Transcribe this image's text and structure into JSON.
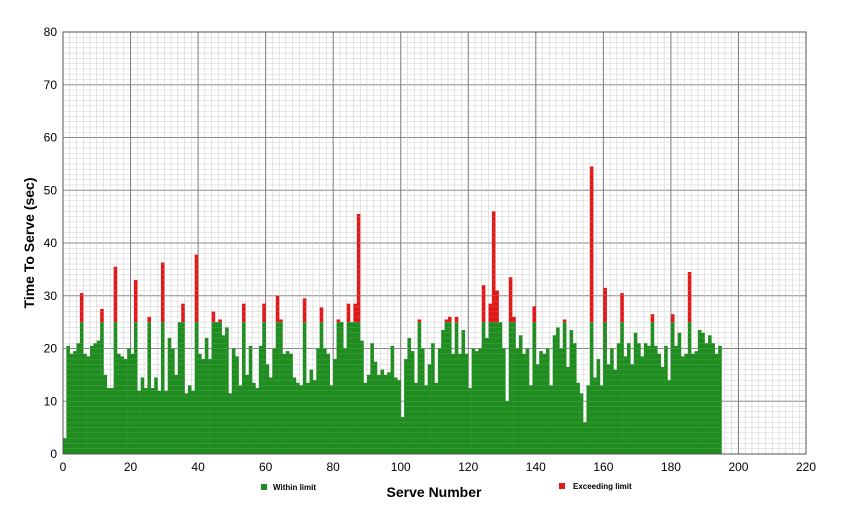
{
  "chart_data": {
    "type": "bar",
    "stacked": true,
    "title": "",
    "xlabel": "Serve Number",
    "ylabel": "Time To Serve (sec)",
    "xlim": [
      0,
      220
    ],
    "ylim": [
      0,
      80
    ],
    "xticks": [
      0,
      20,
      40,
      60,
      80,
      100,
      120,
      140,
      160,
      180,
      200,
      220
    ],
    "yticks": [
      0,
      10,
      20,
      30,
      40,
      50,
      60,
      70,
      80
    ],
    "grid": true,
    "limit_seconds": 25,
    "legend": {
      "placement": "bottom"
    },
    "colors": {
      "within": "#1e8c1e",
      "exceeding": "#e01818",
      "grid_minor": "#c8c8c8",
      "grid_major": "#7a7a7a"
    },
    "series": [
      {
        "name": "Within limit"
      },
      {
        "name": "Exceeding limit"
      }
    ],
    "x": [
      1,
      2,
      3,
      4,
      5,
      6,
      7,
      8,
      9,
      10,
      11,
      12,
      13,
      14,
      15,
      16,
      17,
      18,
      19,
      20,
      21,
      22,
      23,
      24,
      25,
      26,
      27,
      28,
      29,
      30,
      31,
      32,
      33,
      34,
      35,
      36,
      37,
      38,
      39,
      40,
      41,
      42,
      43,
      44,
      45,
      46,
      47,
      48,
      49,
      50,
      51,
      52,
      53,
      54,
      55,
      56,
      57,
      58,
      59,
      60,
      61,
      62,
      63,
      64,
      65,
      66,
      67,
      68,
      69,
      70,
      71,
      72,
      73,
      74,
      75,
      76,
      77,
      78,
      79,
      80,
      81,
      82,
      83,
      84,
      85,
      86,
      87,
      88,
      89,
      90,
      91,
      92,
      93,
      94,
      95,
      96,
      97,
      98,
      99,
      100,
      101,
      102,
      103,
      104,
      105,
      106,
      107,
      108,
      109,
      110,
      111,
      112,
      113,
      114,
      115,
      116,
      117,
      118,
      119,
      120,
      121,
      122,
      123,
      124,
      125,
      126,
      127,
      128,
      129,
      130,
      131,
      132,
      133,
      134,
      135,
      136,
      137,
      138,
      139,
      140,
      141,
      142,
      143,
      144,
      145,
      146,
      147,
      148,
      149,
      150,
      151,
      152,
      153,
      154,
      155,
      156,
      157,
      158,
      159,
      160,
      161,
      162,
      163,
      164,
      165,
      166,
      167,
      168,
      169,
      170,
      171,
      172,
      173,
      174,
      175,
      176,
      177,
      178,
      179,
      180,
      181,
      182,
      183,
      184,
      185,
      186,
      187,
      188,
      189,
      190,
      191,
      192,
      193,
      194,
      195
    ],
    "values": [
      3,
      20.5,
      19,
      19.5,
      21,
      30.5,
      19,
      18.5,
      20.5,
      21,
      21.5,
      27.5,
      15,
      12.5,
      12.5,
      35.5,
      19,
      18.5,
      18,
      20,
      19,
      33,
      12,
      14.5,
      12.5,
      26,
      12.5,
      14.5,
      12,
      36.3,
      12,
      22,
      20,
      15,
      25,
      28.5,
      11.5,
      13,
      12,
      37.8,
      19,
      18,
      22,
      18,
      27,
      25,
      25.5,
      22.5,
      24,
      11.5,
      20,
      18.5,
      13,
      28.5,
      15,
      20.5,
      13.5,
      12.5,
      20.5,
      28.5,
      17,
      14.5,
      20,
      30,
      25.5,
      19,
      19.5,
      19,
      14.5,
      13.5,
      13,
      29.5,
      13.5,
      16,
      14,
      20,
      27.8,
      20,
      19,
      13,
      18,
      25.5,
      25,
      20,
      28.5,
      25,
      28.5,
      45.5,
      21.5,
      13.5,
      15,
      21,
      17.5,
      15,
      16,
      15,
      15.5,
      20.5,
      14.5,
      14,
      7,
      18,
      22,
      19.5,
      13.5,
      25.5,
      20,
      13,
      17,
      21,
      13.5,
      20,
      23.5,
      25.5,
      26,
      19,
      26,
      19,
      23.5,
      19,
      12.5,
      20,
      19.5,
      20,
      32,
      22,
      28.5,
      46,
      31,
      25,
      20,
      10,
      33.5,
      26,
      20,
      22.5,
      19,
      20,
      13,
      28,
      17,
      19.5,
      19,
      20,
      13,
      22.5,
      24,
      20,
      25.5,
      16.5,
      23.5,
      21,
      13.5,
      11.5,
      6,
      13,
      54.5,
      14.5,
      18,
      13,
      31.5,
      17,
      20,
      16,
      21,
      30.5,
      18.5,
      21,
      17,
      23,
      21,
      18.5,
      21,
      20.5,
      26.5,
      20.5,
      19,
      16.5,
      20.5,
      14,
      26.5,
      20.5,
      23,
      18.5,
      19,
      34.5,
      19,
      19.5,
      23.5,
      23,
      21,
      22.5,
      21,
      19,
      20.5
    ]
  },
  "legend_items": [
    {
      "label": "Within limit",
      "color": "#1e8c1e"
    },
    {
      "label": "Exceeding limit",
      "color": "#e01818"
    }
  ]
}
